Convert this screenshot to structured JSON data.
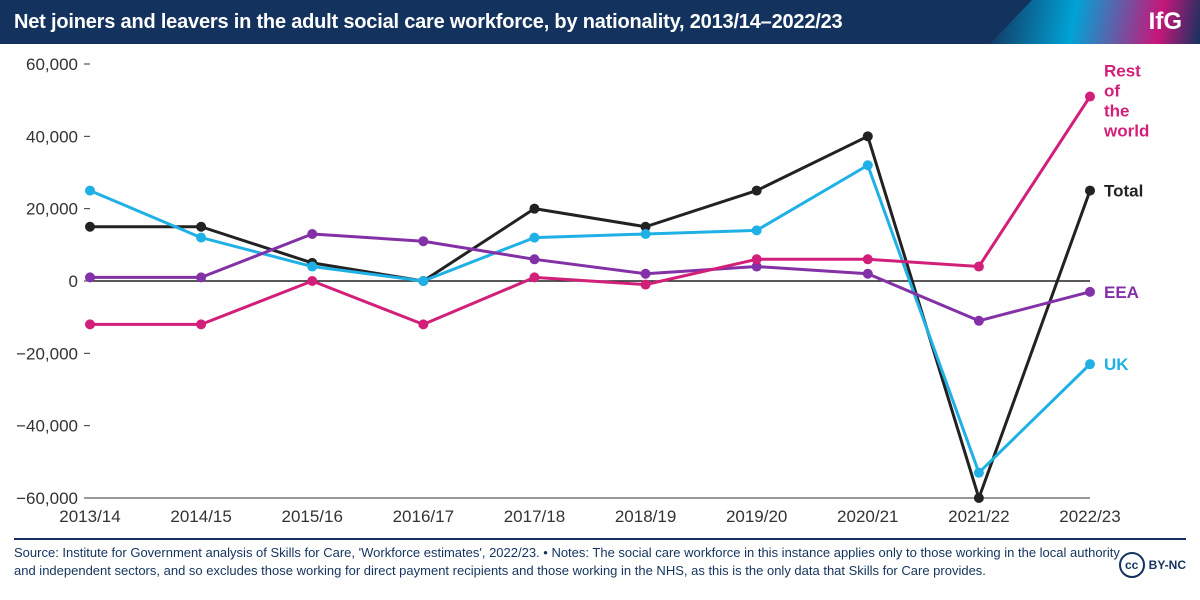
{
  "header": {
    "title": "Net joiners and leavers in the adult social care workforce, by nationality, 2013/14–2022/23",
    "logo": "IfG",
    "bg_color": "#13335e",
    "text_color": "#ffffff"
  },
  "chart": {
    "type": "line",
    "background_color": "#ffffff",
    "x_categories": [
      "2013/14",
      "2014/15",
      "2015/16",
      "2016/17",
      "2017/18",
      "2018/19",
      "2019/20",
      "2020/21",
      "2021/22",
      "2022/23"
    ],
    "ylim": [
      -60000,
      60000
    ],
    "yticks": [
      -60000,
      -40000,
      -20000,
      0,
      20000,
      40000,
      60000
    ],
    "ytick_labels": [
      "−60,000",
      "−40,000",
      "−20,000",
      "0",
      "20,000",
      "40,000",
      "60,000"
    ],
    "axis_color": "#333333",
    "zero_line_color": "#222222",
    "tick_fontsize": 17,
    "tick_color": "#333333",
    "label_fontsize": 17,
    "label_fontweight": 700,
    "line_width": 3,
    "marker_radius": 5,
    "series": [
      {
        "name": "Total",
        "color": "#222222",
        "label": "Total",
        "values": [
          15000,
          15000,
          5000,
          0,
          20000,
          15000,
          25000,
          40000,
          -60000,
          25000
        ]
      },
      {
        "name": "UK",
        "color": "#1fb1e6",
        "label": "UK",
        "values": [
          25000,
          12000,
          4000,
          0,
          12000,
          13000,
          14000,
          32000,
          -53000,
          -23000
        ]
      },
      {
        "name": "EEA",
        "color": "#8331a7",
        "label": "EEA",
        "values": [
          1000,
          1000,
          13000,
          11000,
          6000,
          2000,
          4000,
          2000,
          -11000,
          -3000
        ]
      },
      {
        "name": "Rest of the world",
        "color": "#d21f7a",
        "label": "Rest\nof\nthe\nworld",
        "values": [
          -12000,
          -12000,
          0,
          -12000,
          1000,
          -1000,
          6000,
          6000,
          4000,
          51000
        ]
      }
    ],
    "series_label_order": [
      "Rest of the world",
      "Total",
      "EEA",
      "UK"
    ]
  },
  "footer": {
    "text": "Source: Institute for Government analysis of Skills for Care, 'Workforce estimates', 2022/23. • Notes: The social care workforce in this instance applies only to those working in the local authority and independent sectors, and so excludes those working for direct payment recipients and those working in the NHS, as this is the only data that Skills for Care provides.",
    "license_icon": "cc",
    "license_text": "BY-NC",
    "color": "#13335e",
    "fontsize": 13
  }
}
